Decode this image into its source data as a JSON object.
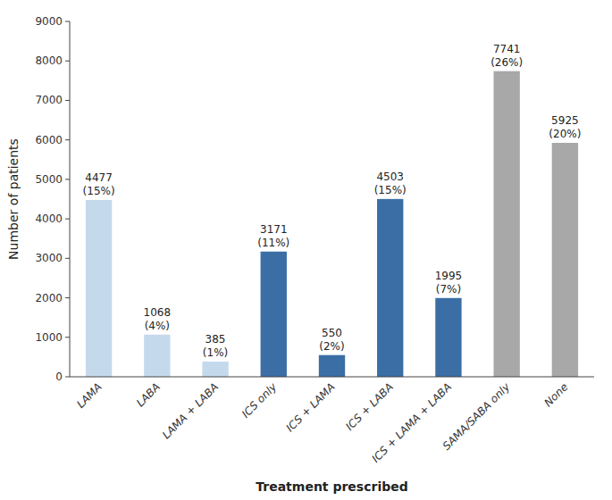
{
  "chart_data": {
    "type": "bar",
    "categories": [
      "LAMA",
      "LABA",
      "LAMA + LABA",
      "ICS only",
      "ICS + LAMA",
      "ICS + LABA",
      "ICS + LAMA + LABA",
      "SAMA/SABA only",
      "None"
    ],
    "values": [
      4477,
      1068,
      385,
      3171,
      550,
      4503,
      1995,
      7741,
      5925
    ],
    "percentage_labels": [
      "(15%)",
      "(4%)",
      "(1%)",
      "(11%)",
      "(2%)",
      "(15%)",
      "(7%)",
      "(26%)",
      "(20%)"
    ],
    "colors": [
      "#c5d9ed",
      "#c5d9ed",
      "#c5d9ed",
      "#3a6ea5",
      "#3a6ea5",
      "#3a6ea5",
      "#3a6ea5",
      "#a8a8a8",
      "#a8a8a8"
    ],
    "ylabel": "Number of patients",
    "xlabel": "Treatment prescribed",
    "ylim": [
      0,
      9000
    ],
    "yticks": [
      0,
      1000,
      2000,
      3000,
      4000,
      5000,
      6000,
      7000,
      8000,
      9000
    ],
    "grid": false,
    "data_labels": true
  }
}
